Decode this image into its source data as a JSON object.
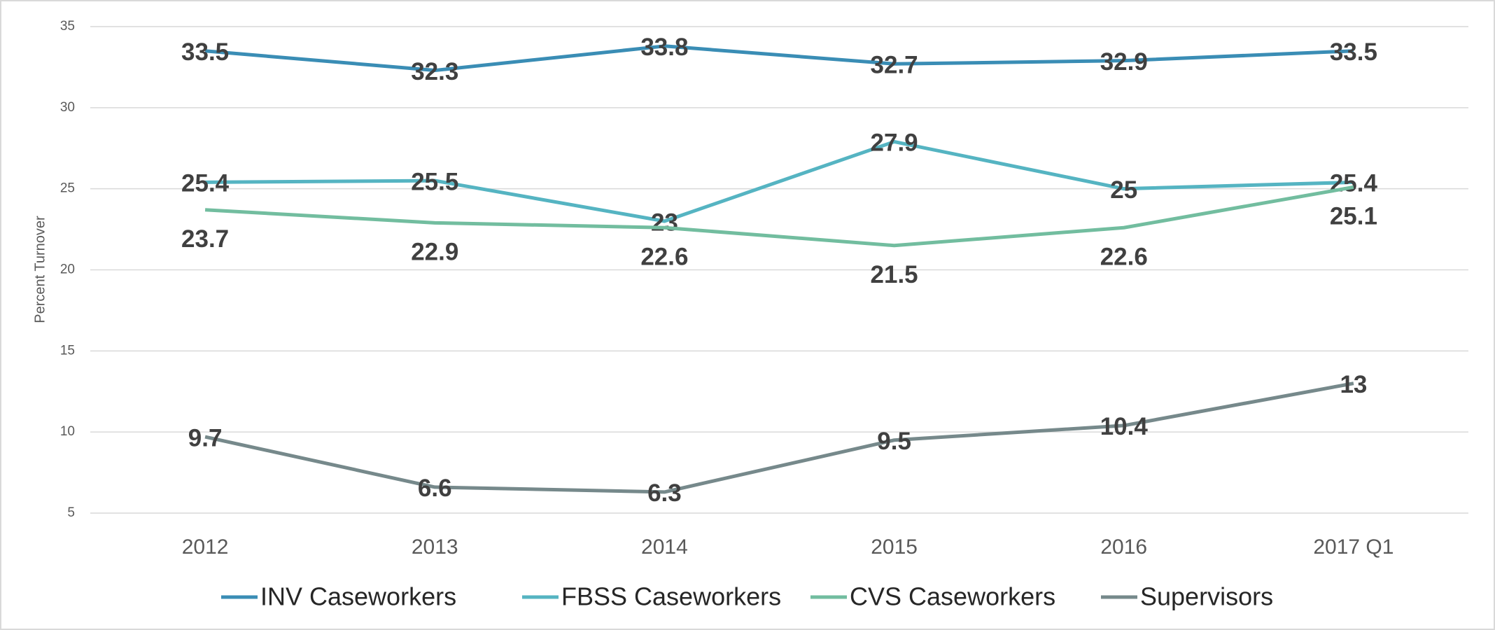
{
  "chart_data": {
    "type": "line",
    "y_label": "Percent Turnover",
    "categories": [
      "2012",
      "2013",
      "2014",
      "2015",
      "2016",
      "2017 Q1"
    ],
    "series": [
      {
        "name": "INV Caseworkers",
        "color": "#3a8db5",
        "values": [
          33.5,
          32.3,
          33.8,
          32.7,
          32.9,
          33.5
        ]
      },
      {
        "name": "FBSS Caseworkers",
        "color": "#55b4c2",
        "values": [
          25.4,
          25.5,
          23,
          27.9,
          25,
          25.4
        ]
      },
      {
        "name": "CVS Caseworkers",
        "color": "#72bd9f",
        "values": [
          23.7,
          22.9,
          22.6,
          21.5,
          22.6,
          25.1
        ]
      },
      {
        "name": "Supervisors",
        "color": "#76898b",
        "values": [
          9.7,
          6.6,
          6.3,
          9.5,
          10.4,
          13
        ]
      }
    ],
    "ylim": [
      5,
      35
    ],
    "yticks": [
      5,
      10,
      15,
      20,
      25,
      30,
      35
    ],
    "grid": true,
    "legend": "bottom"
  }
}
